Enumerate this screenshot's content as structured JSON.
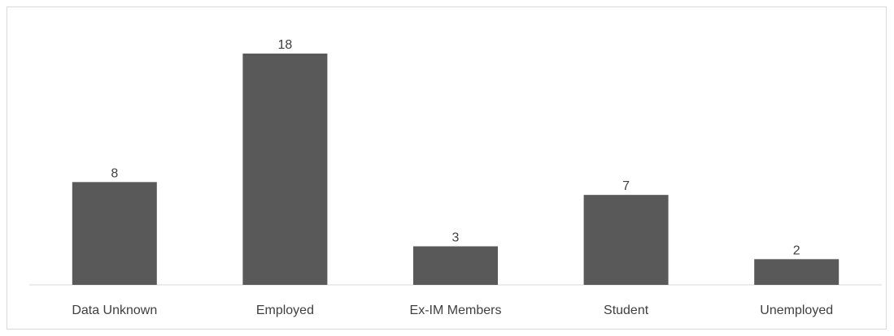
{
  "chart_data": {
    "type": "bar",
    "title": "",
    "xlabel": "",
    "ylabel": "",
    "categories": [
      "Data Unknown",
      "Employed",
      "Ex-IM Members",
      "Student",
      "Unemployed"
    ],
    "values": [
      8,
      18,
      3,
      7,
      2
    ],
    "ylim": [
      0,
      18
    ],
    "grid": false,
    "legend": "none",
    "colors": {
      "bar": "#595959",
      "axis": "#d9d9d9",
      "text": "#404040"
    }
  }
}
